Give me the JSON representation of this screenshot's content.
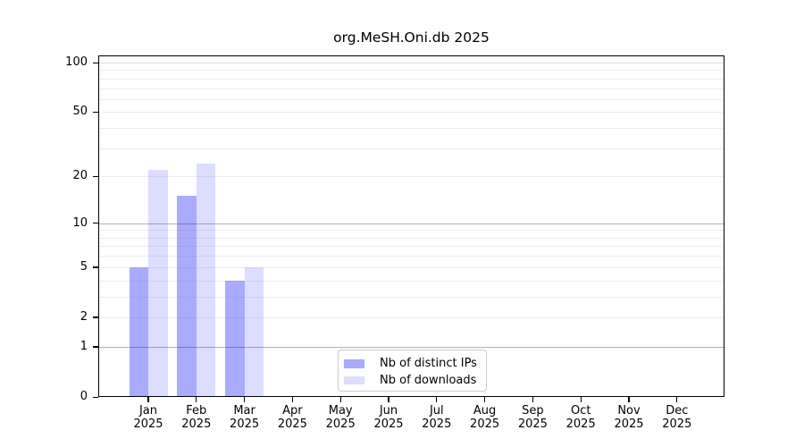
{
  "chart_data": {
    "type": "bar",
    "title": "org.MeSH.Oni.db 2025",
    "categories": [
      "Jan 2025",
      "Feb 2025",
      "Mar 2025",
      "Apr 2025",
      "May 2025",
      "Jun 2025",
      "Jul 2025",
      "Aug 2025",
      "Sep 2025",
      "Oct 2025",
      "Nov 2025",
      "Dec 2025"
    ],
    "months": [
      "Jan",
      "Feb",
      "Mar",
      "Apr",
      "May",
      "Jun",
      "Jul",
      "Aug",
      "Sep",
      "Oct",
      "Nov",
      "Dec"
    ],
    "year_label": "2025",
    "series": [
      {
        "name": "Nb of distinct IPs",
        "slug": "distinct-ips",
        "color": "#aaaaff",
        "values": [
          5,
          15,
          4,
          0,
          0,
          0,
          0,
          0,
          0,
          0,
          0,
          0
        ]
      },
      {
        "name": "Nb of downloads",
        "slug": "downloads",
        "color": "#ddddff",
        "values": [
          22,
          24,
          5,
          0,
          0,
          0,
          0,
          0,
          0,
          0,
          0,
          0
        ]
      }
    ],
    "xlabel": "",
    "ylabel": "",
    "yscale": "log1p",
    "ylim": [
      0,
      111
    ],
    "y_tick_labels": [
      100,
      50,
      20,
      10,
      5,
      2,
      1,
      0
    ],
    "y_major_gridlines": [
      1,
      10
    ],
    "y_major_soft_gridlines": [
      100
    ],
    "y_minor_gridlines": [
      2,
      3,
      4,
      5,
      6,
      7,
      8,
      9,
      20,
      30,
      40,
      50,
      60,
      70,
      80,
      90
    ],
    "grid": true,
    "legend_position": "inside-bottom-center",
    "axis_color": "#000000",
    "background_color": "#ffffff"
  }
}
